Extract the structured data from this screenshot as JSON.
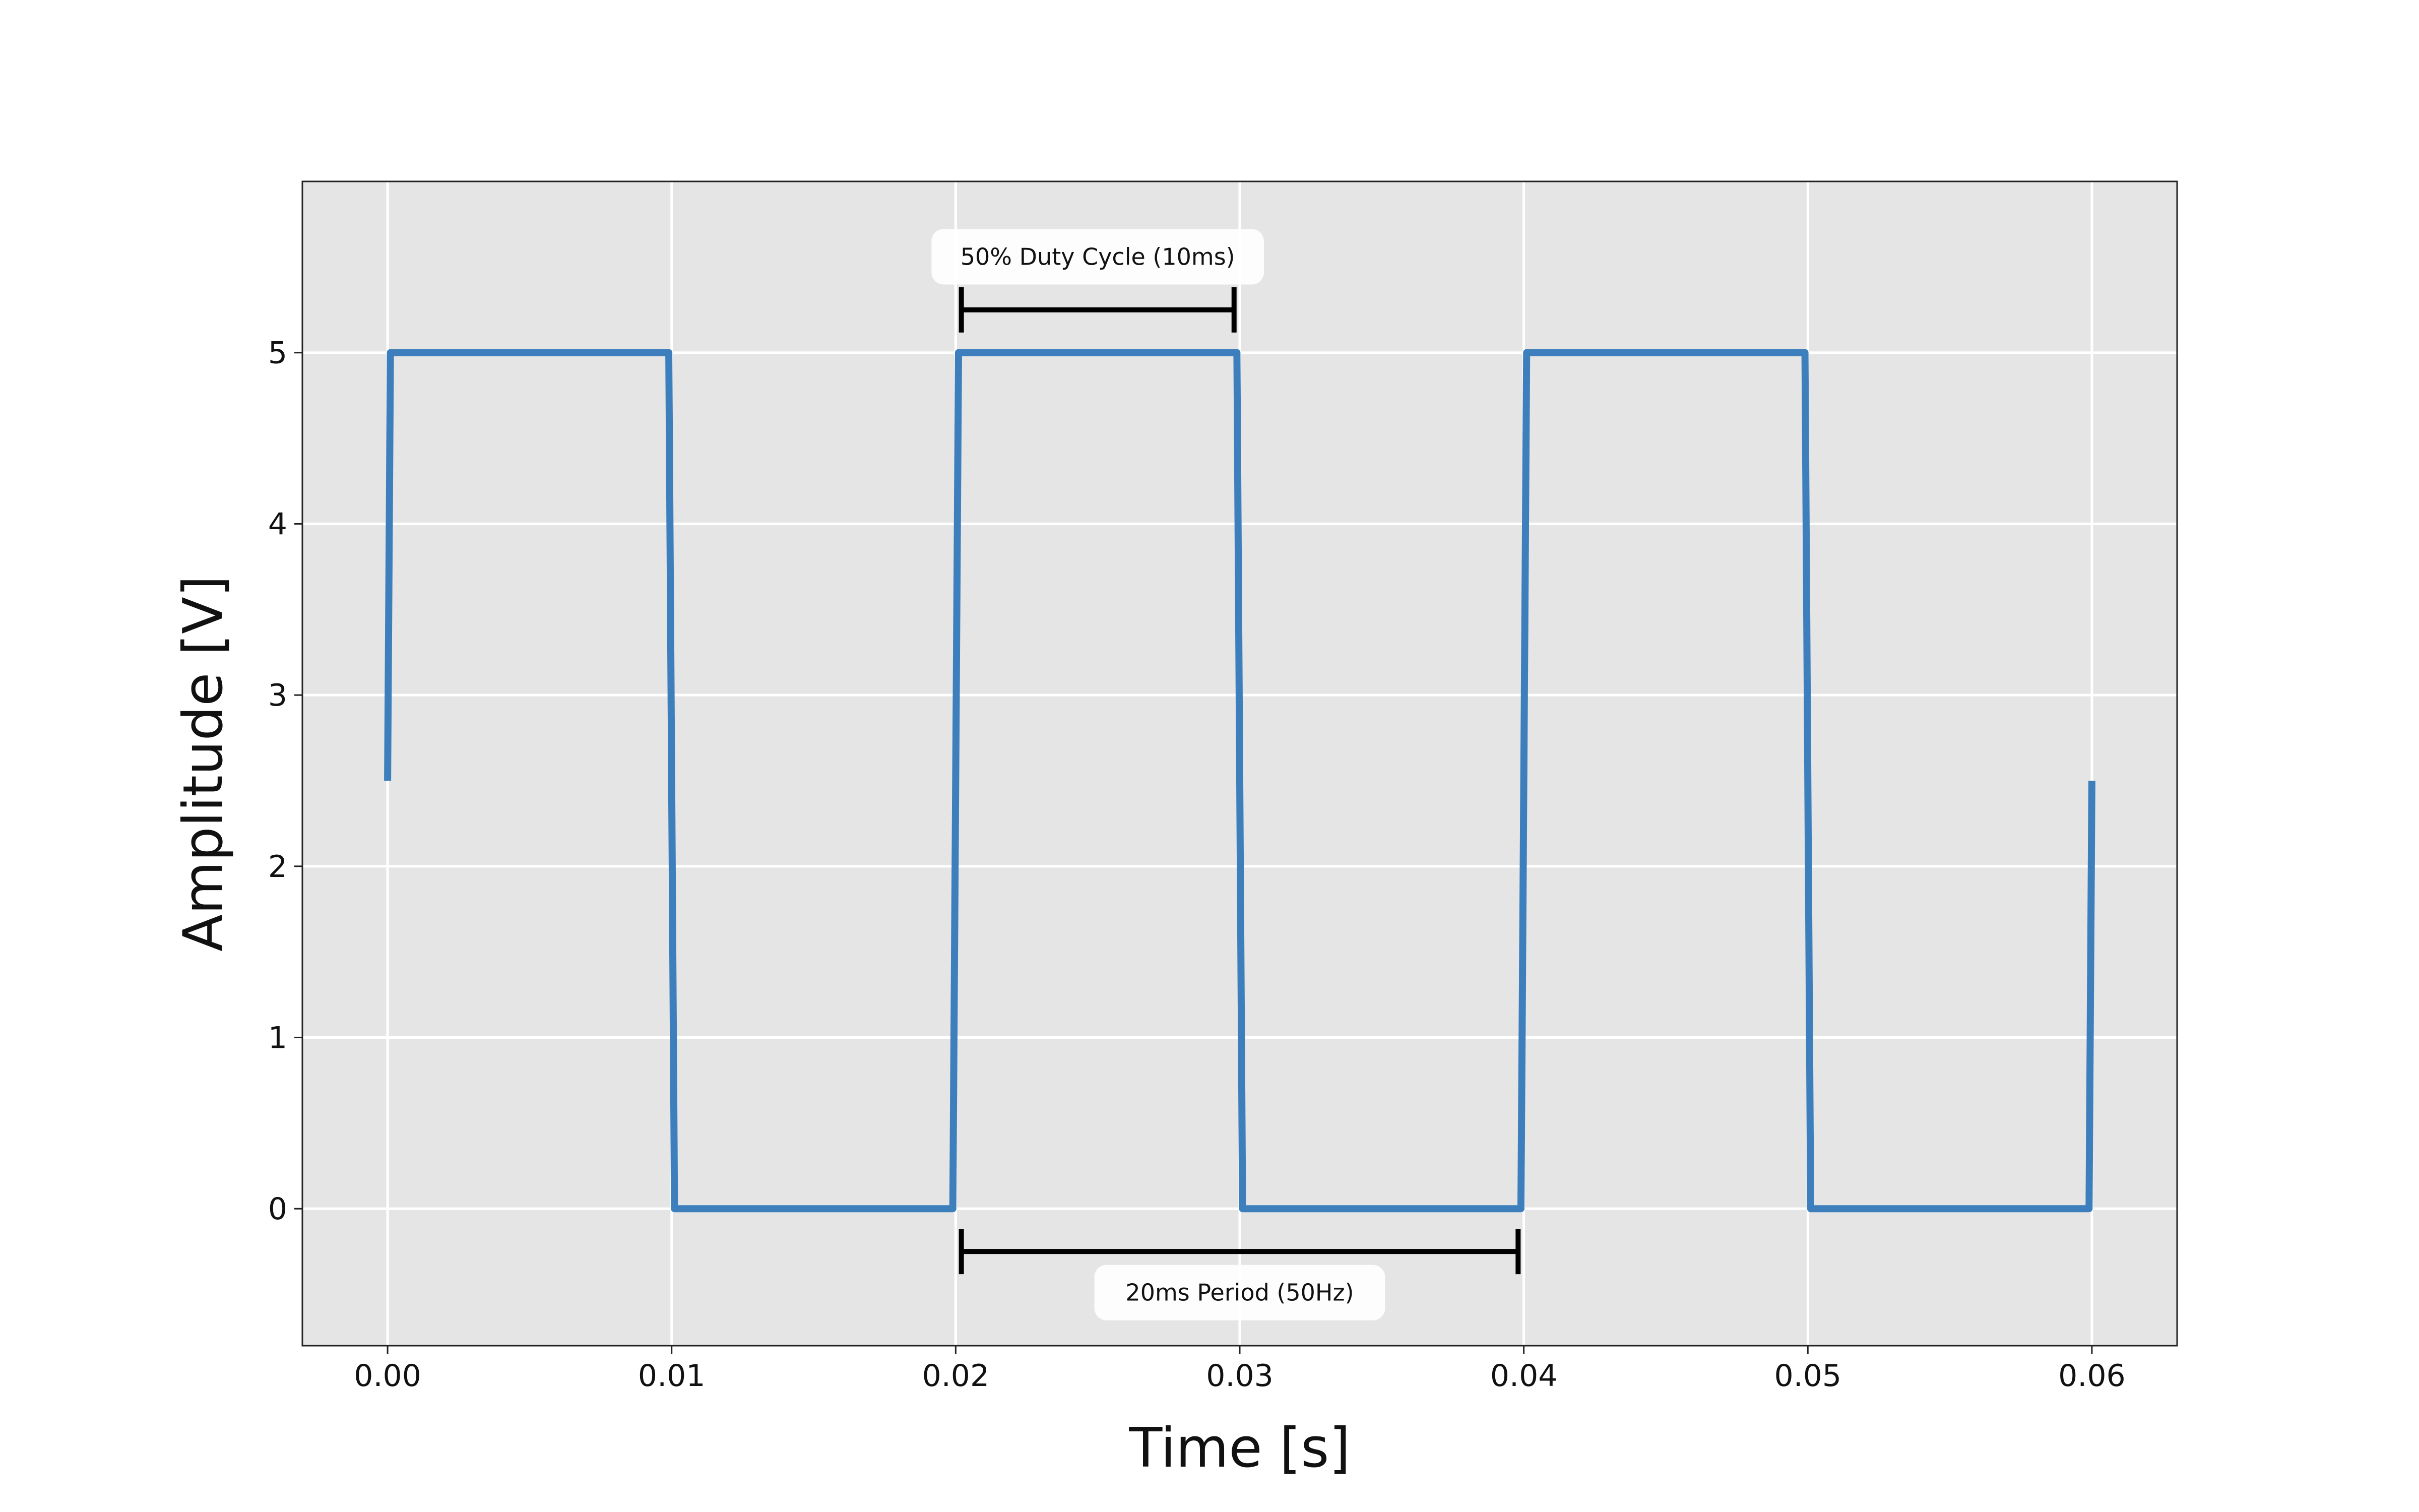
{
  "chart_data": {
    "type": "line",
    "title": "",
    "xlabel": "Time [s]",
    "ylabel": "Amplitude [V]",
    "xlim": [
      -0.003,
      0.063
    ],
    "ylim": [
      -0.8,
      6.0
    ],
    "grid": true,
    "x_ticks": [
      0.0,
      0.01,
      0.02,
      0.03,
      0.04,
      0.05,
      0.06
    ],
    "x_tick_labels": [
      "0.00",
      "0.01",
      "0.02",
      "0.03",
      "0.04",
      "0.05",
      "0.06"
    ],
    "y_ticks": [
      0,
      1,
      2,
      3,
      4,
      5
    ],
    "y_tick_labels": [
      "0",
      "1",
      "2",
      "3",
      "4",
      "5"
    ],
    "series": [
      {
        "color": "#3d7ebc",
        "x": [
          0.0,
          0.0001,
          0.0099,
          0.0101,
          0.0199,
          0.0201,
          0.0299,
          0.0301,
          0.0399,
          0.0401,
          0.0499,
          0.0501,
          0.0599,
          0.06
        ],
        "y": [
          2.5,
          5,
          5,
          0,
          0,
          5,
          5,
          0,
          0,
          5,
          5,
          0,
          0,
          2.5
        ]
      }
    ],
    "annotations": [
      {
        "text": "50% Duty Cycle (10ms)",
        "x_start": 0.0202,
        "x_end": 0.0298,
        "y": 5.25,
        "label_x": 0.025,
        "label_y": 5.56,
        "label_position": "above"
      },
      {
        "text": "20ms Period (50Hz)",
        "x_start": 0.0202,
        "x_end": 0.0398,
        "y": -0.25,
        "label_x": 0.03,
        "label_y": -0.49,
        "label_position": "below"
      }
    ],
    "colors": {
      "plot_background": "#e5e5e5",
      "grid": "#ffffff",
      "line": "#3d7ebc",
      "annotation": "#000000"
    }
  }
}
